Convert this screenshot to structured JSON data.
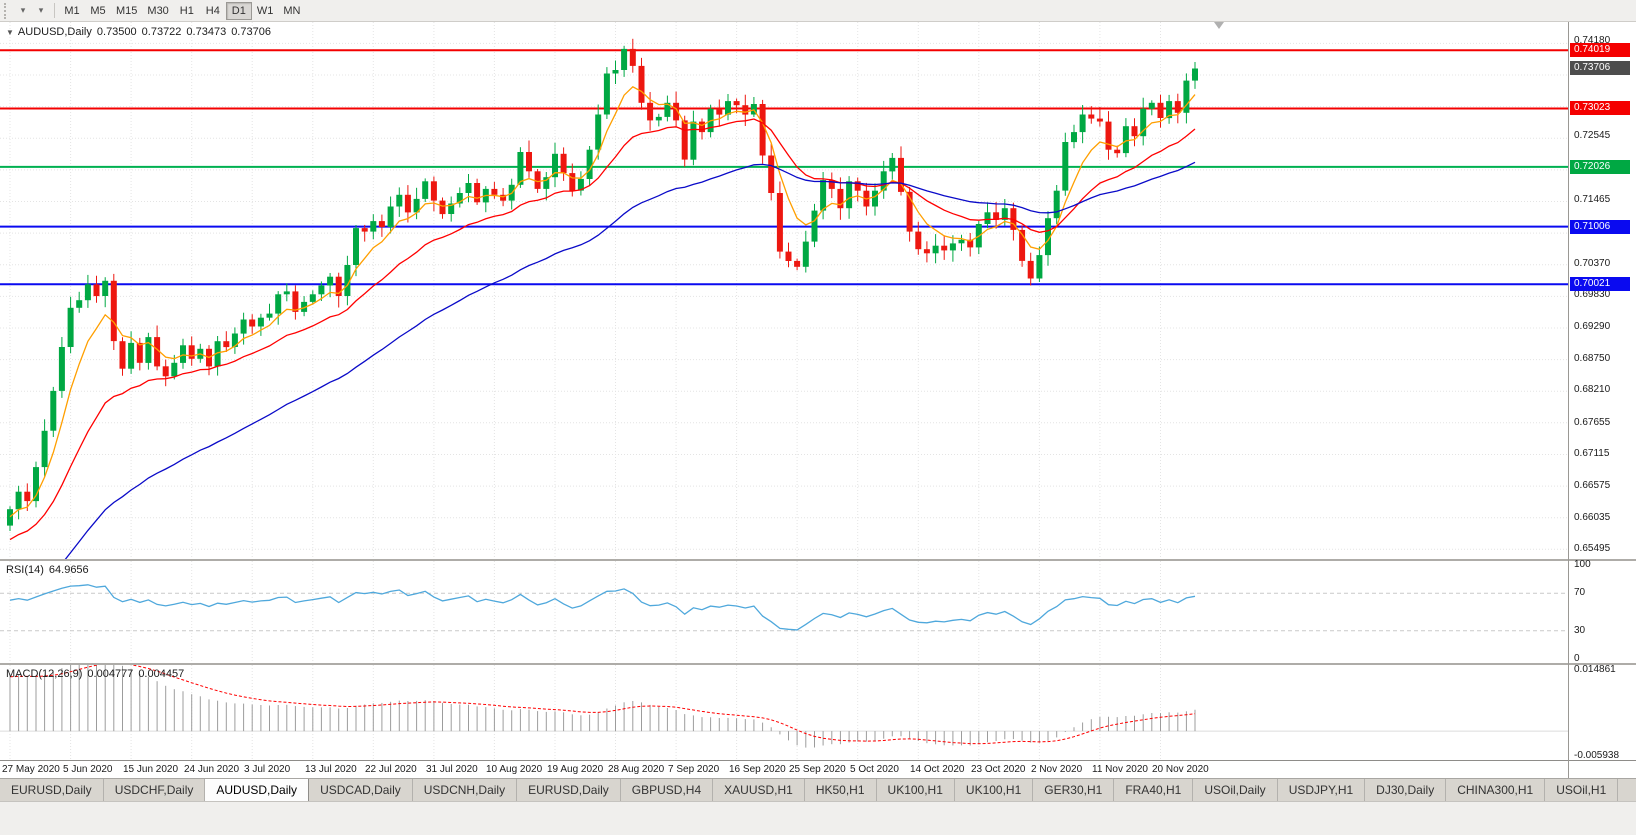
{
  "icons": {
    "menu_arrow": "▼",
    "toolbar_icon_1": "▾",
    "toolbar_icon_2": "▾"
  },
  "toolbar": {
    "timeframes": [
      "M1",
      "M5",
      "M15",
      "M30",
      "H1",
      "H4",
      "D1",
      "W1",
      "MN"
    ],
    "active_timeframe": "D1"
  },
  "chart": {
    "symbol_period": "AUDUSD,Daily",
    "open": "0.73500",
    "high": "0.73722",
    "low": "0.73473",
    "close": "0.73706",
    "current_price": "0.73706",
    "y_axis_labels": [
      "0.74180",
      "0.72545",
      "0.71465",
      "0.70370",
      "0.69830",
      "0.69290",
      "0.68750",
      "0.68210",
      "0.67655",
      "0.67115",
      "0.66575",
      "0.66035",
      "0.65495"
    ],
    "price_badges": [
      {
        "text": "0.74019",
        "price": 0.74019,
        "color": "#F40000"
      },
      {
        "text": "0.73706",
        "price": 0.73706,
        "color": "#4D4D4D"
      },
      {
        "text": "0.73023",
        "price": 0.73023,
        "color": "#F40000"
      },
      {
        "text": "0.72026",
        "price": 0.72026,
        "color": "#00A843"
      },
      {
        "text": "0.71006",
        "price": 0.71006,
        "color": "#0A0AF0"
      },
      {
        "text": "0.70021",
        "price": 0.70021,
        "color": "#0A0AF0"
      }
    ]
  },
  "rsi_panel": {
    "label": "RSI(14)",
    "value": "64.9656",
    "axis_labels": [
      "100",
      "70",
      "30",
      "0"
    ]
  },
  "macd_panel": {
    "label": "MACD(12,26,9)",
    "main_value": "0.004777",
    "signal_value": "0.004457",
    "axis_labels": [
      "0.014861",
      "-0.005938"
    ]
  },
  "time_axis": {
    "labels": [
      "27 May 2020",
      "5 Jun 2020",
      "15 Jun 2020",
      "24 Jun 2020",
      "3 Jul 2020",
      "13 Jul 2020",
      "22 Jul 2020",
      "31 Jul 2020",
      "10 Aug 2020",
      "19 Aug 2020",
      "28 Aug 2020",
      "7 Sep 2020",
      "16 Sep 2020",
      "25 Sep 2020",
      "5 Oct 2020",
      "14 Oct 2020",
      "23 Oct 2020",
      "2 Nov 2020",
      "11 Nov 2020",
      "20 Nov 2020"
    ]
  },
  "tabs": {
    "items": [
      "EURUSD,Daily",
      "USDCHF,Daily",
      "AUDUSD,Daily",
      "USDCAD,Daily",
      "USDCNH,Daily",
      "EURUSD,Daily",
      "GBPUSD,H4",
      "XAUUSD,H1",
      "HK50,H1",
      "UK100,H1",
      "UK100,H1",
      "GER30,H1",
      "FRA40,H1",
      "USOil,Daily",
      "USDJPY,H1",
      "DJ30,Daily",
      "CHINA300,H1",
      "USOil,H1"
    ],
    "active_index": 2
  },
  "chart_data": {
    "type": "candlestick",
    "title": "AUDUSD Daily",
    "symbol": "AUDUSD",
    "timeframe": "Daily",
    "ohlc_current": {
      "open": 0.735,
      "high": 0.73722,
      "low": 0.73473,
      "close": 0.73706
    },
    "x_tick_labels": [
      "27 May 2020",
      "5 Jun 2020",
      "15 Jun 2020",
      "24 Jun 2020",
      "3 Jul 2020",
      "13 Jul 2020",
      "22 Jul 2020",
      "31 Jul 2020",
      "10 Aug 2020",
      "19 Aug 2020",
      "28 Aug 2020",
      "7 Sep 2020",
      "16 Sep 2020",
      "25 Sep 2020",
      "5 Oct 2020",
      "14 Oct 2020",
      "23 Oct 2020",
      "2 Nov 2020",
      "11 Nov 2020",
      "20 Nov 2020"
    ],
    "candles_per_tick": 7,
    "first_open": 0.659,
    "closes": [
      0.6618,
      0.6648,
      0.6632,
      0.669,
      0.6752,
      0.682,
      0.6895,
      0.6962,
      0.6975,
      0.7002,
      0.6982,
      0.7008,
      0.6905,
      0.6858,
      0.6902,
      0.6868,
      0.6912,
      0.6862,
      0.6845,
      0.6868,
      0.6898,
      0.6875,
      0.6892,
      0.6862,
      0.6905,
      0.6895,
      0.6918,
      0.6942,
      0.693,
      0.6945,
      0.6952,
      0.6985,
      0.699,
      0.6955,
      0.6972,
      0.6985,
      0.7,
      0.7015,
      0.6982,
      0.7035,
      0.7098,
      0.7092,
      0.711,
      0.71,
      0.7135,
      0.7155,
      0.7125,
      0.7148,
      0.7178,
      0.7145,
      0.7122,
      0.714,
      0.7158,
      0.7175,
      0.7142,
      0.7165,
      0.7155,
      0.7145,
      0.7172,
      0.7228,
      0.7195,
      0.7165,
      0.7185,
      0.7225,
      0.7192,
      0.7162,
      0.7182,
      0.7232,
      0.7292,
      0.7362,
      0.7368,
      0.7404,
      0.7375,
      0.7312,
      0.7282,
      0.7288,
      0.7312,
      0.7282,
      0.7215,
      0.728,
      0.7262,
      0.7302,
      0.7292,
      0.7315,
      0.7308,
      0.7292,
      0.731,
      0.7222,
      0.7158,
      0.7058,
      0.7042,
      0.7032,
      0.7075,
      0.7128,
      0.718,
      0.7165,
      0.7132,
      0.7178,
      0.7162,
      0.7135,
      0.7162,
      0.7195,
      0.7218,
      0.716,
      0.7092,
      0.7062,
      0.7055,
      0.7068,
      0.706,
      0.7072,
      0.7078,
      0.7065,
      0.7105,
      0.7125,
      0.7112,
      0.7132,
      0.7095,
      0.7042,
      0.7012,
      0.7052,
      0.7115,
      0.7162,
      0.7245,
      0.7262,
      0.7292,
      0.7285,
      0.728,
      0.7232,
      0.7226,
      0.7272,
      0.7255,
      0.7302,
      0.7312,
      0.7286,
      0.7315,
      0.7295,
      0.735,
      0.73706
    ],
    "price_axis": {
      "top": 0.745,
      "bottom": 0.6533
    },
    "grid": {
      "h_start": 0.65495,
      "h_step": 0.0054,
      "h_count": 17
    },
    "colors": {
      "bull": "#00A843",
      "bear": "#ED1710",
      "ma_fast": "#FF9F00",
      "ma_mid": "#FF0000",
      "ma_slow": "#0A0AC8",
      "rsi": "#4FA8DC",
      "macd_hist": "#9C9C9C",
      "macd_signal": "#FF0000"
    },
    "levels": [
      {
        "price": 0.74019,
        "color": "#F40000"
      },
      {
        "price": 0.73023,
        "color": "#F40000"
      },
      {
        "price": 0.72026,
        "color": "#00B050"
      },
      {
        "price": 0.71006,
        "color": "#0A0AF0"
      },
      {
        "price": 0.70021,
        "color": "#0A0AF0"
      }
    ],
    "moving_averages": [
      {
        "period": 6,
        "color_key": "ma_fast",
        "seed": 0.66
      },
      {
        "period": 18,
        "color_key": "ma_mid",
        "seed": 0.656
      },
      {
        "period": 45,
        "color_key": "ma_slow",
        "seed": 0.645
      }
    ],
    "rsi": {
      "period": 14,
      "current": 64.9656,
      "overbought": 70,
      "oversold": 30,
      "scale": [
        0,
        100
      ],
      "seed_gain": 0.003,
      "seed_loss": 0.0018
    },
    "macd": {
      "fast": 12,
      "slow": 26,
      "signal_period": 9,
      "current_main": 0.004777,
      "current_signal": 0.004457,
      "axis_max": 0.014861,
      "axis_min": -0.005938,
      "scale_top": 0.016,
      "scale_bottom": -0.007,
      "seed_fast_ema": 0.652,
      "seed_slow_ema": 0.638,
      "seed_signal": 0.013
    }
  }
}
